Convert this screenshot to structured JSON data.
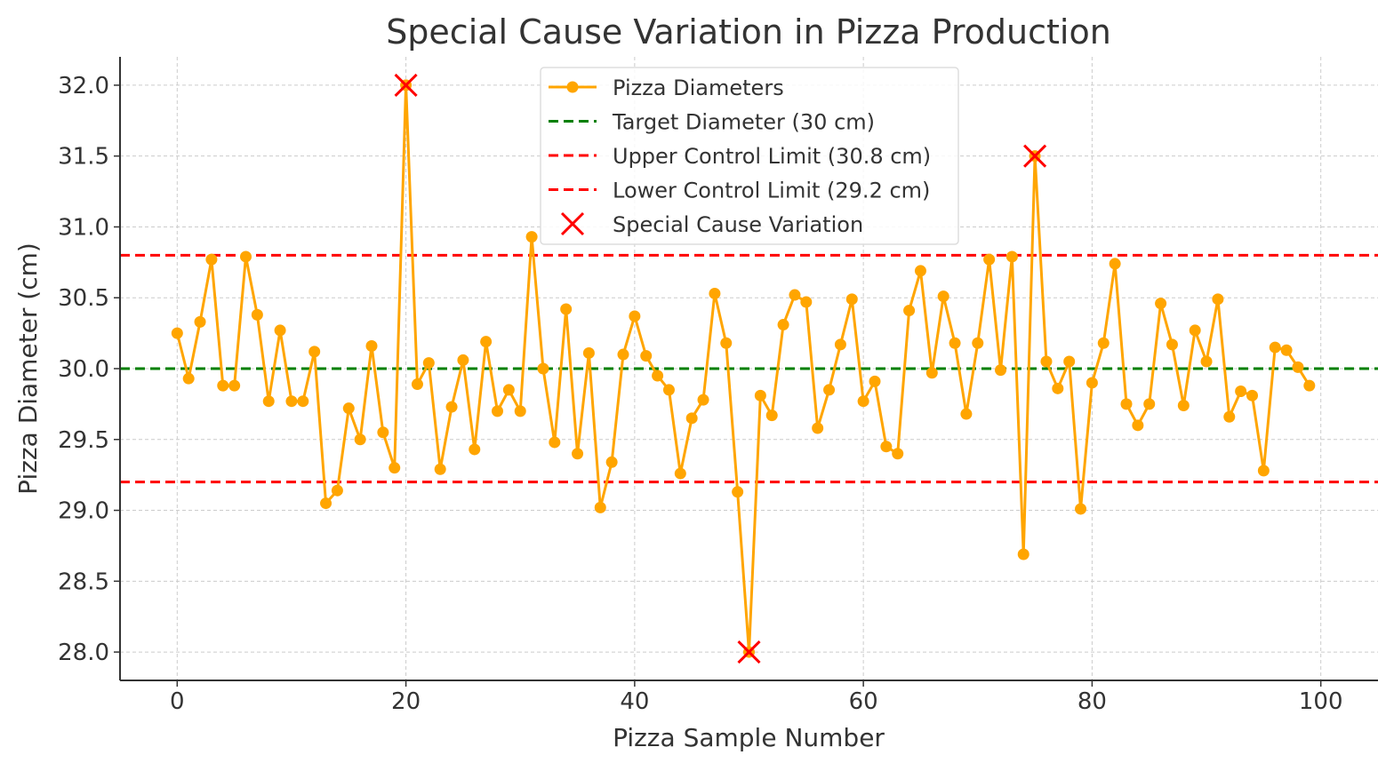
{
  "chart_data": {
    "type": "line",
    "title": "Special Cause Variation in Pizza Production",
    "xlabel": "Pizza Sample Number",
    "ylabel": "Pizza Diameter (cm)",
    "xlim": [
      -5,
      105
    ],
    "ylim": [
      27.8,
      32.2
    ],
    "xticks": [
      0,
      20,
      40,
      60,
      80,
      100
    ],
    "yticks": [
      28.0,
      28.5,
      29.0,
      29.5,
      30.0,
      30.5,
      31.0,
      31.5,
      32.0
    ],
    "grid": true,
    "legend_position": "top-center",
    "series": [
      {
        "name": "Pizza Diameters",
        "color": "#FFA500",
        "marker": "circle",
        "x": [
          0,
          1,
          2,
          3,
          4,
          5,
          6,
          7,
          8,
          9,
          10,
          11,
          12,
          13,
          14,
          15,
          16,
          17,
          18,
          19,
          20,
          21,
          22,
          23,
          24,
          25,
          26,
          27,
          28,
          29,
          30,
          31,
          32,
          33,
          34,
          35,
          36,
          37,
          38,
          39,
          40,
          41,
          42,
          43,
          44,
          45,
          46,
          47,
          48,
          49,
          50,
          51,
          52,
          53,
          54,
          55,
          56,
          57,
          58,
          59,
          60,
          61,
          62,
          63,
          64,
          65,
          66,
          67,
          68,
          69,
          70,
          71,
          72,
          73,
          74,
          75,
          76,
          77,
          78,
          79,
          80,
          81,
          82,
          83,
          84,
          85,
          86,
          87,
          88,
          89,
          90,
          91,
          92,
          93,
          94,
          95,
          96,
          97,
          98,
          99
        ],
        "y": [
          30.25,
          29.93,
          30.33,
          30.77,
          29.88,
          29.88,
          30.79,
          30.38,
          29.77,
          30.27,
          29.77,
          29.77,
          30.12,
          29.05,
          29.14,
          29.72,
          29.5,
          30.16,
          29.55,
          29.3,
          32.0,
          29.89,
          30.04,
          29.29,
          29.73,
          30.06,
          29.43,
          30.19,
          29.7,
          29.85,
          29.7,
          30.93,
          30.0,
          29.48,
          30.42,
          29.4,
          30.11,
          29.02,
          29.34,
          30.1,
          30.37,
          30.09,
          29.95,
          29.85,
          29.26,
          29.65,
          29.78,
          30.53,
          30.18,
          29.13,
          28.0,
          29.81,
          29.67,
          30.31,
          30.52,
          30.47,
          29.58,
          29.85,
          30.17,
          30.49,
          29.77,
          29.91,
          29.45,
          29.4,
          30.41,
          30.69,
          29.97,
          30.51,
          30.18,
          29.68,
          30.18,
          30.77,
          29.99,
          30.79,
          28.69,
          31.5,
          30.05,
          29.86,
          30.05,
          29.01,
          29.9,
          30.18,
          30.74,
          29.75,
          29.6,
          29.75,
          30.46,
          30.17,
          29.74,
          30.27,
          30.05,
          30.49,
          29.66,
          29.84,
          29.81,
          29.28,
          30.15,
          30.13,
          30.01,
          29.88
        ]
      },
      {
        "name": "Target Diameter (30 cm)",
        "color": "#008000",
        "style": "dashed",
        "y": 30.0
      },
      {
        "name": "Upper Control Limit (30.8 cm)",
        "color": "#FF0000",
        "style": "dashed",
        "y": 30.8
      },
      {
        "name": "Lower Control Limit (29.2 cm)",
        "color": "#FF0000",
        "style": "dashed",
        "y": 29.2
      },
      {
        "name": "Special Cause Variation",
        "color": "#FF0000",
        "marker": "x",
        "x": [
          20,
          50,
          75
        ],
        "y": [
          32.0,
          28.0,
          31.5
        ]
      }
    ]
  }
}
